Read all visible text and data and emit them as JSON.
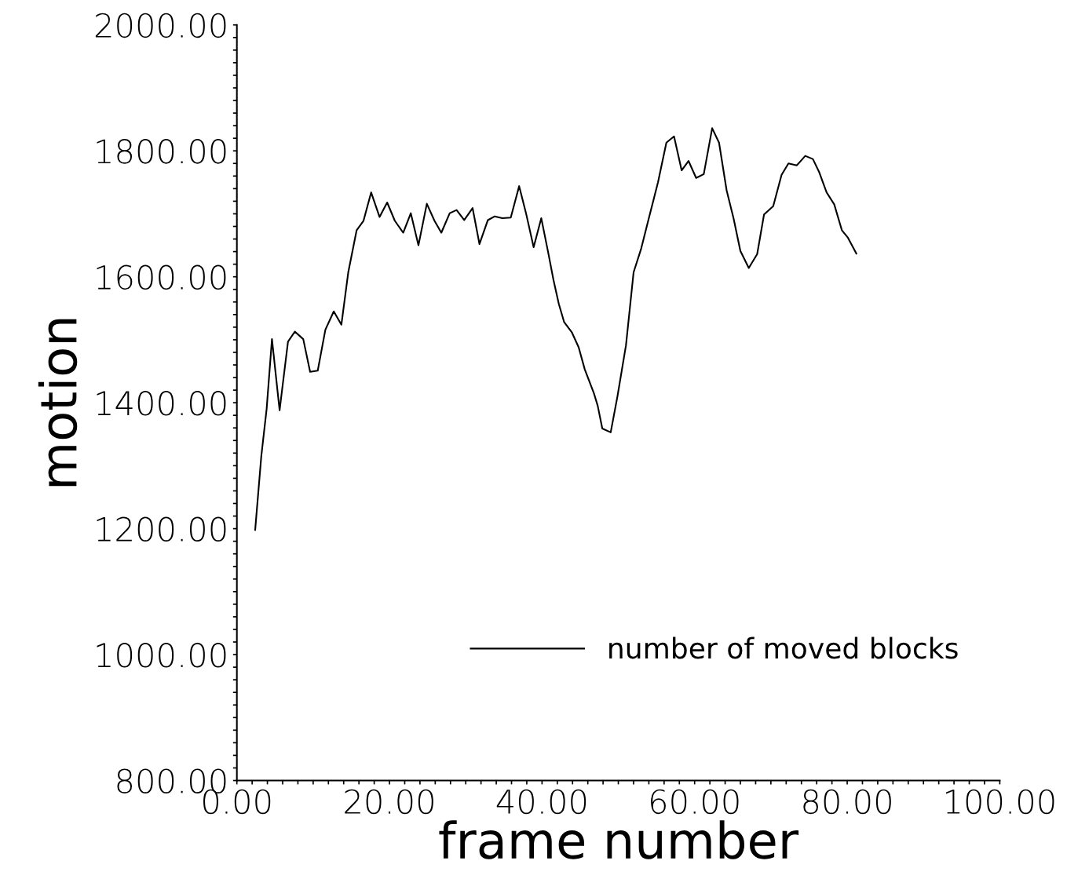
{
  "chart_data": {
    "type": "line",
    "xlabel": "frame number",
    "ylabel": "motion",
    "xlim": [
      0,
      100
    ],
    "ylim": [
      800,
      2000
    ],
    "xticks": [
      {
        "value": 0,
        "label": "0.00"
      },
      {
        "value": 2,
        "label": null
      },
      {
        "value": 4,
        "label": null
      },
      {
        "value": 6,
        "label": null
      },
      {
        "value": 8,
        "label": null
      },
      {
        "value": 10,
        "label": null
      },
      {
        "value": 12,
        "label": null
      },
      {
        "value": 14,
        "label": null
      },
      {
        "value": 16,
        "label": null
      },
      {
        "value": 18,
        "label": null
      },
      {
        "value": 20,
        "label": "20.00"
      },
      {
        "value": 22,
        "label": null
      },
      {
        "value": 24,
        "label": null
      },
      {
        "value": 26,
        "label": null
      },
      {
        "value": 28,
        "label": null
      },
      {
        "value": 30,
        "label": null
      },
      {
        "value": 32,
        "label": null
      },
      {
        "value": 34,
        "label": null
      },
      {
        "value": 36,
        "label": null
      },
      {
        "value": 38,
        "label": null
      },
      {
        "value": 40,
        "label": "40.00"
      },
      {
        "value": 42,
        "label": null
      },
      {
        "value": 44,
        "label": null
      },
      {
        "value": 46,
        "label": null
      },
      {
        "value": 48,
        "label": null
      },
      {
        "value": 50,
        "label": null
      },
      {
        "value": 52,
        "label": null
      },
      {
        "value": 54,
        "label": null
      },
      {
        "value": 56,
        "label": null
      },
      {
        "value": 58,
        "label": null
      },
      {
        "value": 60,
        "label": "60.00"
      },
      {
        "value": 62,
        "label": null
      },
      {
        "value": 64,
        "label": null
      },
      {
        "value": 66,
        "label": null
      },
      {
        "value": 68,
        "label": null
      },
      {
        "value": 70,
        "label": null
      },
      {
        "value": 72,
        "label": null
      },
      {
        "value": 74,
        "label": null
      },
      {
        "value": 76,
        "label": null
      },
      {
        "value": 78,
        "label": null
      },
      {
        "value": 80,
        "label": "80.00"
      },
      {
        "value": 82,
        "label": null
      },
      {
        "value": 84,
        "label": null
      },
      {
        "value": 86,
        "label": null
      },
      {
        "value": 88,
        "label": null
      },
      {
        "value": 90,
        "label": null
      },
      {
        "value": 92,
        "label": null
      },
      {
        "value": 94,
        "label": null
      },
      {
        "value": 96,
        "label": null
      },
      {
        "value": 98,
        "label": null
      },
      {
        "value": 100,
        "label": "100.00"
      }
    ],
    "yticks": [
      {
        "value": 800,
        "label": "800.00"
      },
      {
        "value": 820,
        "label": null
      },
      {
        "value": 840,
        "label": null
      },
      {
        "value": 860,
        "label": null
      },
      {
        "value": 880,
        "label": null
      },
      {
        "value": 900,
        "label": null
      },
      {
        "value": 920,
        "label": null
      },
      {
        "value": 940,
        "label": null
      },
      {
        "value": 960,
        "label": null
      },
      {
        "value": 980,
        "label": null
      },
      {
        "value": 1000,
        "label": "1000.00"
      },
      {
        "value": 1020,
        "label": null
      },
      {
        "value": 1040,
        "label": null
      },
      {
        "value": 1060,
        "label": null
      },
      {
        "value": 1080,
        "label": null
      },
      {
        "value": 1100,
        "label": null
      },
      {
        "value": 1120,
        "label": null
      },
      {
        "value": 1140,
        "label": null
      },
      {
        "value": 1160,
        "label": null
      },
      {
        "value": 1180,
        "label": null
      },
      {
        "value": 1200,
        "label": "1200.00"
      },
      {
        "value": 1220,
        "label": null
      },
      {
        "value": 1240,
        "label": null
      },
      {
        "value": 1260,
        "label": null
      },
      {
        "value": 1280,
        "label": null
      },
      {
        "value": 1300,
        "label": null
      },
      {
        "value": 1320,
        "label": null
      },
      {
        "value": 1340,
        "label": null
      },
      {
        "value": 1360,
        "label": null
      },
      {
        "value": 1380,
        "label": null
      },
      {
        "value": 1400,
        "label": "1400.00"
      },
      {
        "value": 1420,
        "label": null
      },
      {
        "value": 1440,
        "label": null
      },
      {
        "value": 1460,
        "label": null
      },
      {
        "value": 1480,
        "label": null
      },
      {
        "value": 1500,
        "label": null
      },
      {
        "value": 1520,
        "label": null
      },
      {
        "value": 1540,
        "label": null
      },
      {
        "value": 1560,
        "label": null
      },
      {
        "value": 1580,
        "label": null
      },
      {
        "value": 1600,
        "label": "1600.00"
      },
      {
        "value": 1620,
        "label": null
      },
      {
        "value": 1640,
        "label": null
      },
      {
        "value": 1660,
        "label": null
      },
      {
        "value": 1680,
        "label": null
      },
      {
        "value": 1700,
        "label": null
      },
      {
        "value": 1720,
        "label": null
      },
      {
        "value": 1740,
        "label": null
      },
      {
        "value": 1760,
        "label": null
      },
      {
        "value": 1780,
        "label": null
      },
      {
        "value": 1800,
        "label": "1800.00"
      },
      {
        "value": 1820,
        "label": null
      },
      {
        "value": 1840,
        "label": null
      },
      {
        "value": 1860,
        "label": null
      },
      {
        "value": 1880,
        "label": null
      },
      {
        "value": 1900,
        "label": null
      },
      {
        "value": 1920,
        "label": null
      },
      {
        "value": 1940,
        "label": null
      },
      {
        "value": 1960,
        "label": null
      },
      {
        "value": 1980,
        "label": null
      },
      {
        "value": 2000,
        "label": "2000.00"
      }
    ],
    "grid": false,
    "legend": "lower right",
    "marker": "none",
    "line_style": "solid",
    "series": [
      {
        "name": "number of moved blocks",
        "color": "#000000",
        "x": [
          2.4,
          3.2,
          3.9,
          4.6,
          5.6,
          6.7,
          7.6,
          8.7,
          9.6,
          10.6,
          11.6,
          12.7,
          13.7,
          14.6,
          15.7,
          16.6,
          17.6,
          18.7,
          19.7,
          20.7,
          21.8,
          22.8,
          23.8,
          24.9,
          25.9,
          26.8,
          27.9,
          28.8,
          29.8,
          30.9,
          31.8,
          32.9,
          33.8,
          34.8,
          35.9,
          37.0,
          37.9,
          38.9,
          39.9,
          40.8,
          41.5,
          42.2,
          42.9,
          43.9,
          44.8,
          45.6,
          46.8,
          47.3,
          47.9,
          49.0,
          49.9,
          51.0,
          52.0,
          53.0,
          54.0,
          55.2,
          56.3,
          57.3,
          58.3,
          59.2,
          60.2,
          61.2,
          62.3,
          63.2,
          64.2,
          65.1,
          66.0,
          67.1,
          68.2,
          69.1,
          70.3,
          71.4,
          72.3,
          73.4,
          74.5,
          75.5,
          76.3,
          77.3,
          78.3,
          79.3,
          80.1,
          81.2
        ],
        "values": [
          1198,
          1315,
          1390,
          1501,
          1388,
          1497,
          1513,
          1501,
          1449,
          1451,
          1516,
          1545,
          1524,
          1607,
          1674,
          1689,
          1734,
          1695,
          1718,
          1689,
          1670,
          1701,
          1650,
          1716,
          1689,
          1670,
          1701,
          1706,
          1690,
          1709,
          1652,
          1690,
          1696,
          1693,
          1694,
          1744,
          1701,
          1647,
          1693,
          1639,
          1595,
          1557,
          1528,
          1512,
          1488,
          1453,
          1415,
          1395,
          1359,
          1353,
          1411,
          1491,
          1607,
          1645,
          1693,
          1750,
          1813,
          1823,
          1769,
          1784,
          1757,
          1763,
          1836,
          1813,
          1737,
          1693,
          1641,
          1614,
          1636,
          1699,
          1712,
          1762,
          1780,
          1777,
          1792,
          1787,
          1767,
          1734,
          1715,
          1674,
          1662,
          1637
        ]
      }
    ]
  }
}
